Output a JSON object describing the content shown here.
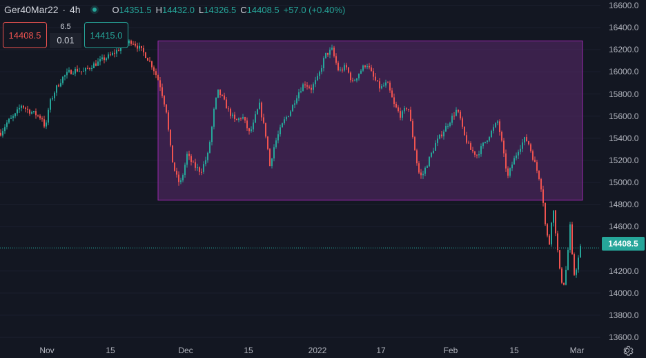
{
  "legend": {
    "symbol": "Ger40Mar22",
    "interval": "4h",
    "open_key": "O",
    "open": "14351.5",
    "high_key": "H",
    "high": "14432.0",
    "low_key": "L",
    "low": "14326.5",
    "close_key": "C",
    "close": "14408.5",
    "change": "+57.0 (+0.40%)"
  },
  "trade": {
    "sell_price": "14408.5",
    "spread": "6.5",
    "quantity": "0.01",
    "buy_price": "14415.0"
  },
  "last_price": "14408.5",
  "price_scale": [
    "16600.0",
    "16400.0",
    "16200.0",
    "16000.0",
    "15800.0",
    "15600.0",
    "15400.0",
    "15200.0",
    "15000.0",
    "14800.0",
    "14600.0",
    "14408.5",
    "14200.0",
    "14000.0",
    "13800.0",
    "13600.0"
  ],
  "price_ticks": [
    16600,
    16400,
    16200,
    16000,
    15800,
    15600,
    15400,
    15200,
    15000,
    14800,
    14600,
    14200,
    14000,
    13800,
    13600
  ],
  "time_labels": [
    "Nov",
    "15",
    "Dec",
    "15",
    "2022",
    "17",
    "Feb",
    "15",
    "Mar"
  ],
  "colors": {
    "background": "#131722",
    "up": "#26a69a",
    "down": "#ef5350",
    "range_fill": "#5b2a6e",
    "range_border": "#9c27b0"
  },
  "chart_data": {
    "type": "candlestick",
    "title": "",
    "ylim": [
      13550,
      16650
    ],
    "range_box": {
      "top": 16280,
      "bottom": 14840
    },
    "close_path": [
      [
        0,
        15450
      ],
      [
        10,
        15550
      ],
      [
        20,
        15600
      ],
      [
        30,
        15700
      ],
      [
        40,
        15650
      ],
      [
        50,
        15620
      ],
      [
        60,
        15580
      ],
      [
        65,
        15480
      ],
      [
        70,
        15700
      ],
      [
        80,
        15850
      ],
      [
        90,
        15950
      ],
      [
        100,
        16000
      ],
      [
        110,
        16020
      ],
      [
        120,
        16000
      ],
      [
        130,
        16050
      ],
      [
        140,
        16080
      ],
      [
        150,
        16120
      ],
      [
        160,
        16150
      ],
      [
        170,
        16200
      ],
      [
        180,
        16250
      ],
      [
        190,
        16280
      ],
      [
        200,
        16220
      ],
      [
        210,
        16150
      ],
      [
        220,
        16050
      ],
      [
        230,
        15900
      ],
      [
        240,
        15650
      ],
      [
        245,
        15350
      ],
      [
        250,
        15150
      ],
      [
        255,
        15050
      ],
      [
        260,
        14980
      ],
      [
        265,
        15100
      ],
      [
        270,
        15250
      ],
      [
        280,
        15150
      ],
      [
        290,
        15100
      ],
      [
        300,
        15250
      ],
      [
        305,
        15450
      ],
      [
        310,
        15700
      ],
      [
        315,
        15820
      ],
      [
        320,
        15780
      ],
      [
        330,
        15650
      ],
      [
        340,
        15550
      ],
      [
        350,
        15600
      ],
      [
        360,
        15450
      ],
      [
        365,
        15500
      ],
      [
        370,
        15620
      ],
      [
        375,
        15700
      ],
      [
        380,
        15550
      ],
      [
        385,
        15400
      ],
      [
        390,
        15150
      ],
      [
        395,
        15300
      ],
      [
        400,
        15400
      ],
      [
        410,
        15550
      ],
      [
        420,
        15650
      ],
      [
        430,
        15800
      ],
      [
        440,
        15900
      ],
      [
        450,
        15850
      ],
      [
        460,
        15950
      ],
      [
        465,
        16050
      ],
      [
        470,
        16150
      ],
      [
        480,
        16200
      ],
      [
        485,
        16100
      ],
      [
        490,
        16000
      ],
      [
        500,
        16050
      ],
      [
        510,
        15900
      ],
      [
        520,
        16000
      ],
      [
        530,
        16080
      ],
      [
        540,
        15950
      ],
      [
        550,
        15850
      ],
      [
        560,
        15900
      ],
      [
        570,
        15700
      ],
      [
        580,
        15600
      ],
      [
        590,
        15700
      ],
      [
        595,
        15500
      ],
      [
        600,
        15300
      ],
      [
        605,
        15100
      ],
      [
        610,
        15050
      ],
      [
        620,
        15200
      ],
      [
        630,
        15350
      ],
      [
        640,
        15450
      ],
      [
        650,
        15550
      ],
      [
        660,
        15650
      ],
      [
        665,
        15600
      ],
      [
        670,
        15450
      ],
      [
        680,
        15300
      ],
      [
        690,
        15250
      ],
      [
        700,
        15350
      ],
      [
        710,
        15450
      ],
      [
        720,
        15550
      ],
      [
        725,
        15400
      ],
      [
        730,
        15200
      ],
      [
        735,
        15050
      ],
      [
        740,
        15150
      ],
      [
        750,
        15300
      ],
      [
        760,
        15400
      ],
      [
        765,
        15350
      ],
      [
        770,
        15250
      ],
      [
        775,
        15150
      ],
      [
        780,
        15050
      ],
      [
        785,
        14900
      ],
      [
        790,
        14550
      ],
      [
        795,
        14450
      ],
      [
        800,
        14800
      ],
      [
        805,
        14500
      ],
      [
        810,
        14200
      ],
      [
        815,
        14050
      ],
      [
        820,
        14250
      ],
      [
        825,
        14600
      ],
      [
        830,
        14150
      ],
      [
        835,
        14250
      ],
      [
        840,
        14408
      ]
    ]
  }
}
